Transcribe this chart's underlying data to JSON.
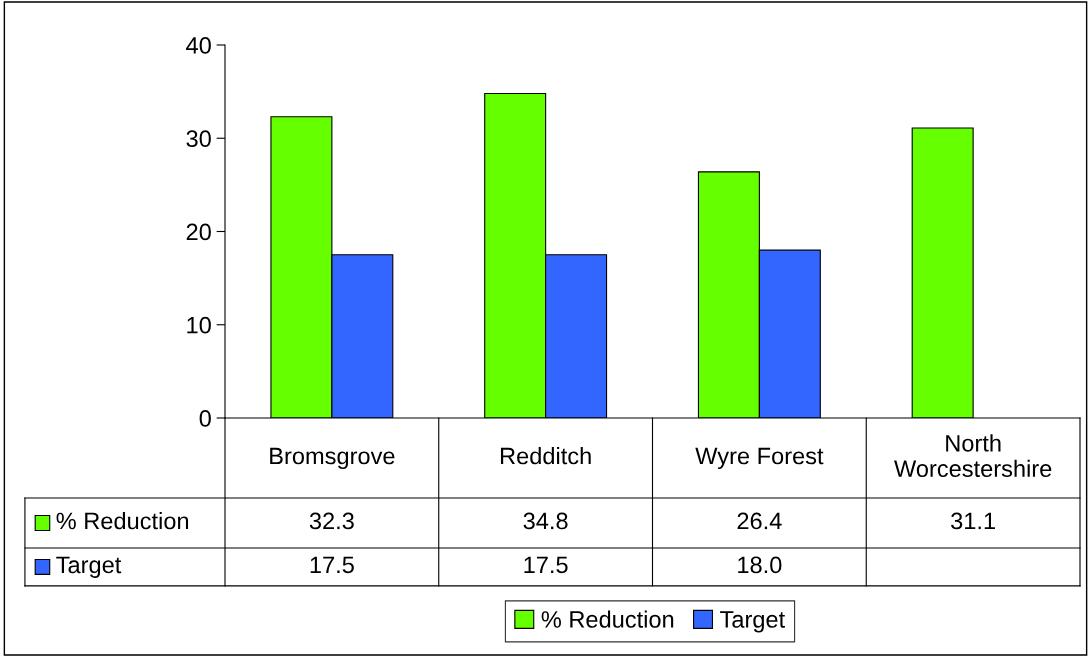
{
  "chart_data": {
    "type": "bar",
    "categories": [
      "Bromsgrove",
      "Redditch",
      "Wyre Forest",
      "North\nWorcestershire"
    ],
    "series": [
      {
        "name": "% Reduction",
        "color": "#66ff00",
        "values": [
          32.3,
          34.8,
          26.4,
          31.1
        ],
        "value_labels": [
          "32.3",
          "34.8",
          "26.4",
          "31.1"
        ]
      },
      {
        "name": "Target",
        "color": "#3366ff",
        "values": [
          17.5,
          17.5,
          18.0,
          null
        ],
        "value_labels": [
          "17.5",
          "17.5",
          "18.0",
          null
        ]
      }
    ],
    "ylim": [
      0,
      40
    ],
    "yticks": [
      0,
      10,
      20,
      30,
      40
    ],
    "grid": false,
    "legend": "bottom"
  }
}
